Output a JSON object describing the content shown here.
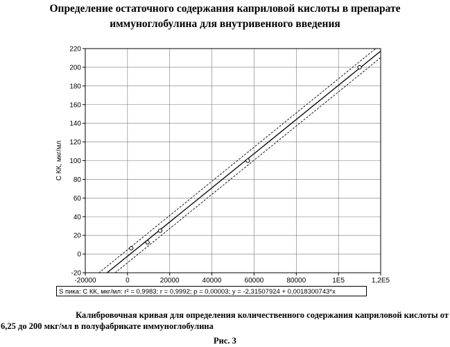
{
  "header": {
    "title_line1": "Определение остаточного содержания каприловой кислоты в препарате",
    "title_line2": "иммуноглобулина для внутривенного введения"
  },
  "chart_data": {
    "type": "scatter",
    "ylabel": "С КК, мкг/мл",
    "xlim": [
      -20000,
      120000
    ],
    "ylim": [
      -20,
      220
    ],
    "x_ticks": [
      -20000,
      0,
      20000,
      40000,
      60000,
      80000,
      100000,
      120000
    ],
    "x_tick_labels": [
      "-20000",
      "0",
      "20000",
      "40000",
      "60000",
      "80000",
      "1E5",
      "1,2E5"
    ],
    "y_ticks": [
      -20,
      0,
      20,
      40,
      60,
      80,
      100,
      120,
      140,
      160,
      180,
      200,
      220
    ],
    "y_tick_labels": [
      "-20",
      "0",
      "20",
      "40",
      "60",
      "80",
      "100",
      "120",
      "140",
      "160",
      "180",
      "200",
      "220"
    ],
    "points": [
      {
        "x": 1800,
        "y": 6.25
      },
      {
        "x": 9500,
        "y": 12.5
      },
      {
        "x": 15500,
        "y": 25
      },
      {
        "x": 57000,
        "y": 100
      },
      {
        "x": 110000,
        "y": 200
      }
    ],
    "fit": {
      "intercept": -2.31507924,
      "slope": 0.00183007,
      "style": "solid"
    },
    "confidence_band": {
      "half_width": 7,
      "style": "dashed"
    },
    "formula": "S пика: С КК, мкг/мл: r² = 0,9983; r = 0,9992; p = 0,00003; y = -2,31507924 + 0,0018300743*x",
    "grid": true
  },
  "caption": {
    "line1": "Калибровочная кривая для определения количественного содержания каприловой кислоты от",
    "line2": "6,25 до 200 мкг/мл в полуфабрикате иммуноглобулина"
  },
  "figure_label": "Рис. 3"
}
